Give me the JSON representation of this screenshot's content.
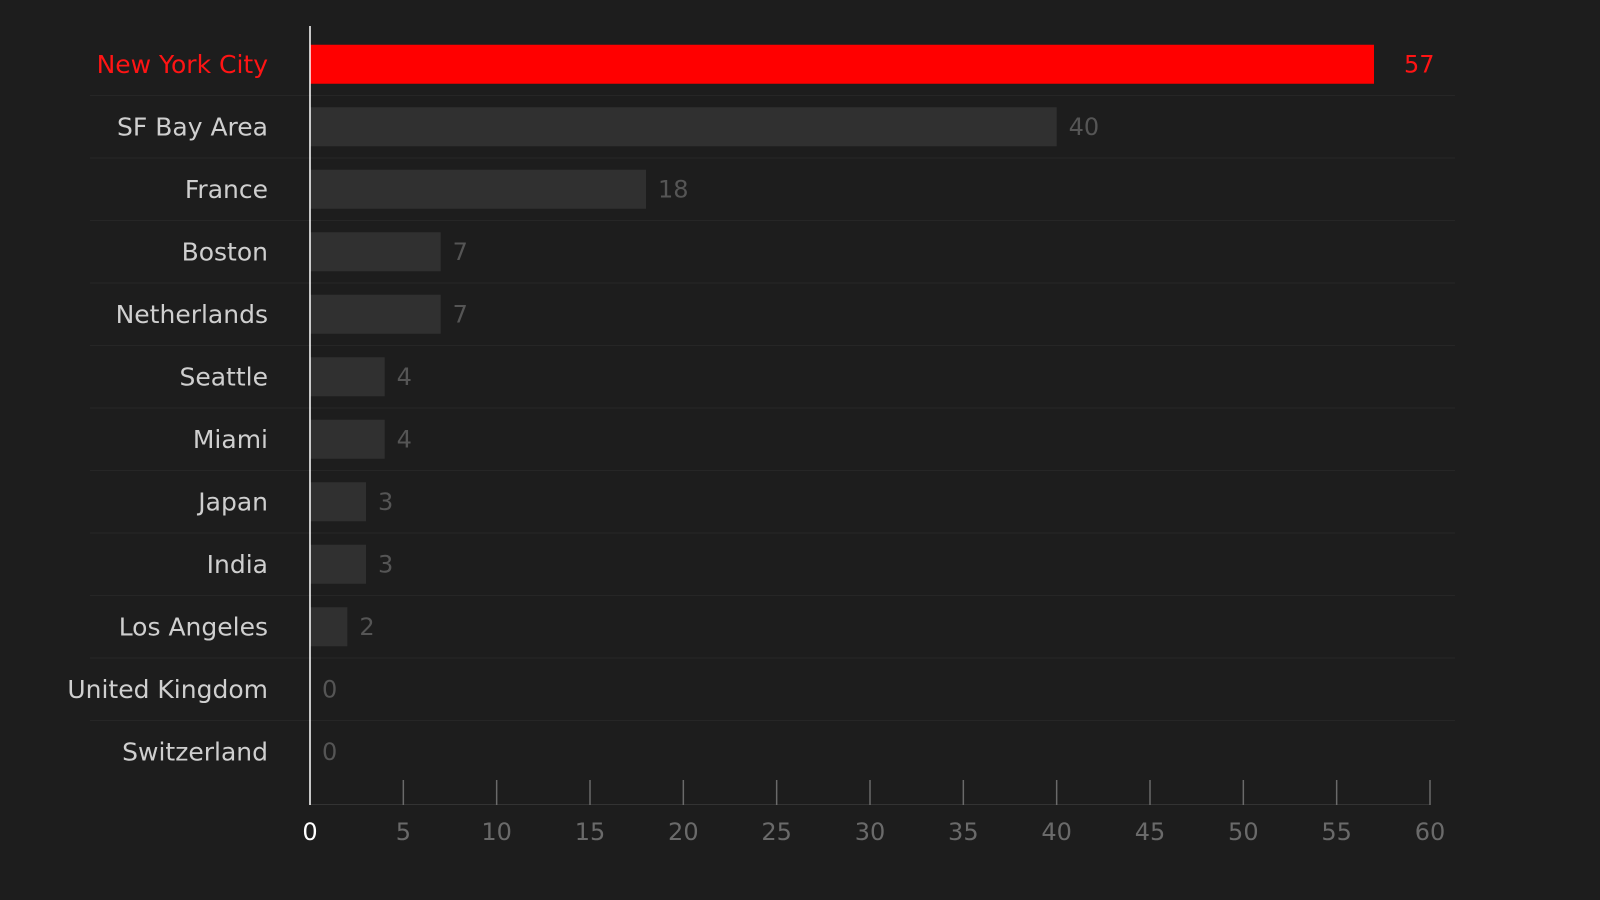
{
  "chart_data": {
    "type": "bar",
    "orientation": "horizontal",
    "categories": [
      "New York City",
      "SF Bay Area",
      "France",
      "Boston",
      "Netherlands",
      "Seattle",
      "Miami",
      "Japan",
      "India",
      "Los Angeles",
      "United Kingdom",
      "Switzerland"
    ],
    "values": [
      57,
      40,
      18,
      7,
      7,
      4,
      4,
      3,
      3,
      2,
      0,
      0
    ],
    "highlight_index": 0,
    "xlim": [
      0,
      60
    ],
    "xticks": [
      0,
      5,
      10,
      15,
      20,
      25,
      30,
      35,
      40,
      45,
      50,
      55,
      60
    ],
    "title": "",
    "xlabel": "",
    "ylabel": "",
    "grid": false,
    "colors": {
      "background": "#1d1d1d",
      "highlight_bar": "#ff0000",
      "bar": "#303030",
      "highlight_text": "#ff1414",
      "category_text": "#cfcfcf",
      "value_text": "#555555",
      "axis": "#ffffff",
      "ticks": "#6a6a6a",
      "tick_zero_text": "#ffffff",
      "separator": "#262626"
    }
  }
}
